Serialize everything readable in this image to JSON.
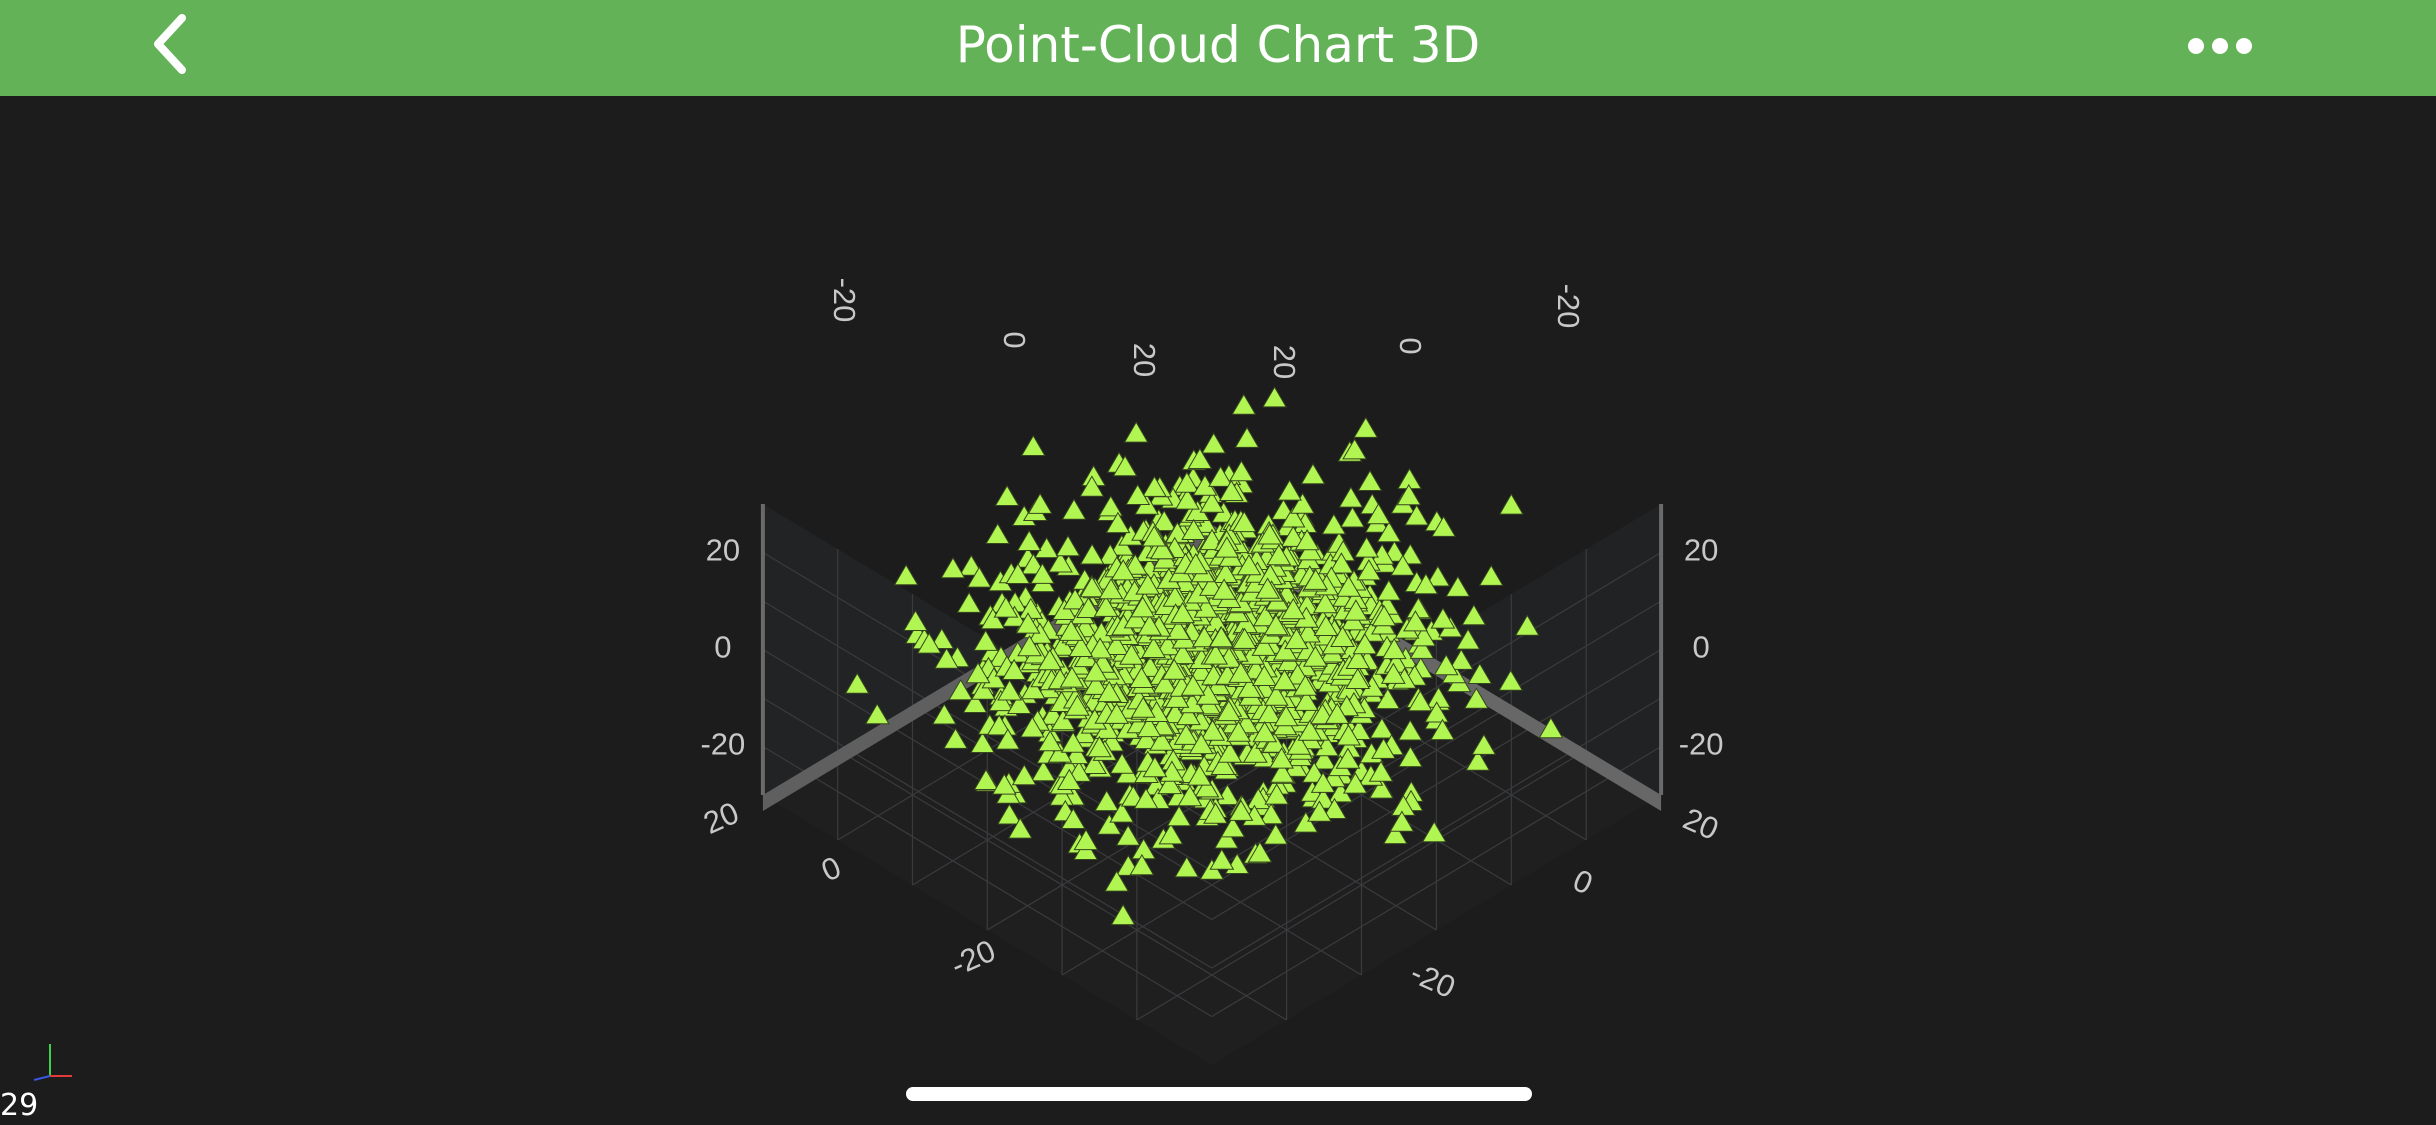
{
  "nav": {
    "title": "Point-Cloud Chart 3D",
    "back_icon": "chevron-left-icon",
    "more_icon": "more-horizontal-icon"
  },
  "status": {
    "fps": "29"
  },
  "colors": {
    "nav_bg": "#64b257",
    "background": "#1c1c1c",
    "point_fill": "#b0f552",
    "axis_label": "#c8c8c8"
  },
  "chart_data": {
    "type": "scatter",
    "subtype": "point-cloud-3d",
    "marker": "triangle",
    "point_count": 1500,
    "distribution": "gaussian, centered at 0, std ≈ 10 on each axis",
    "x_axis": {
      "range": [
        -30,
        30
      ],
      "tick_labels": [
        "20",
        "0",
        "-20"
      ]
    },
    "y_axis": {
      "range": [
        -30,
        30
      ],
      "tick_labels": [
        "20",
        "0",
        "-20"
      ]
    },
    "z_axis": {
      "range": [
        -30,
        30
      ],
      "tick_labels": [
        "20",
        "0",
        "-20"
      ]
    },
    "back_wall_labels": [
      "-20",
      "0",
      "20",
      "20",
      "0",
      "-20"
    ],
    "grid": true,
    "title": ""
  }
}
